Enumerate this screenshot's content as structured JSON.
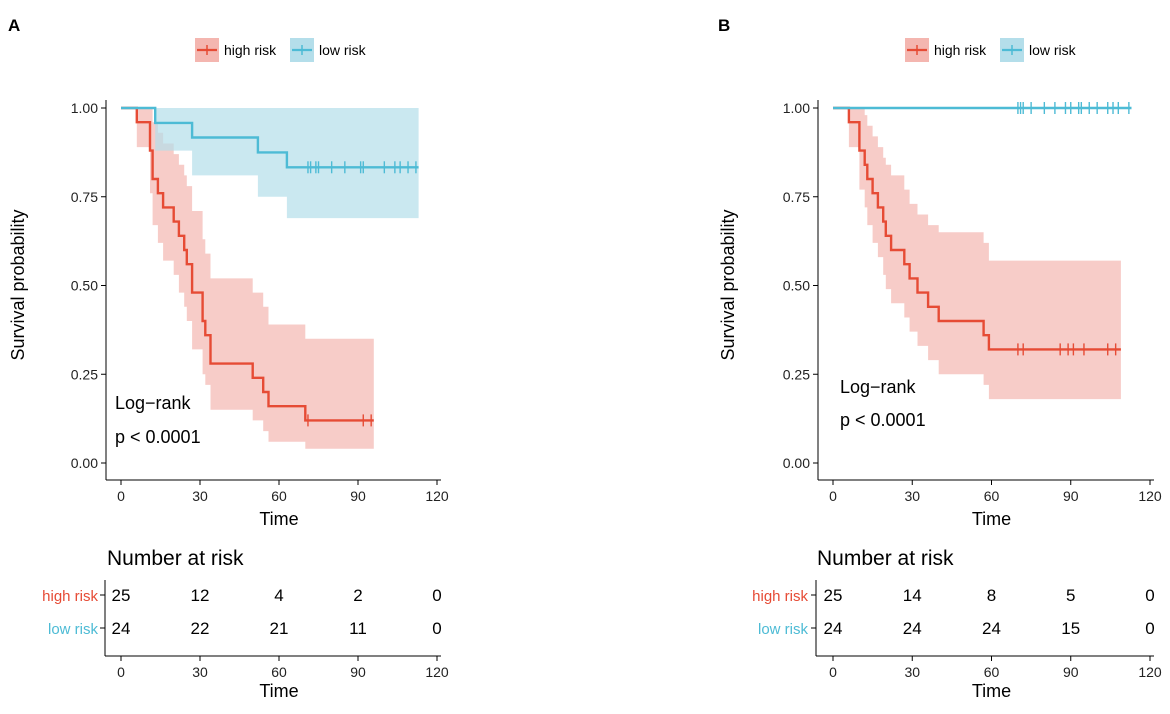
{
  "colors": {
    "high": "#E64B35",
    "low": "#4DBBD5",
    "high_fill": "#F4B6B0",
    "low_fill": "#B4DEEA",
    "axis": "#000000"
  },
  "legend": {
    "high_label": "high risk",
    "low_label": "low risk"
  },
  "chart_data": [
    {
      "type": "kaplan-meier",
      "panel_label": "A",
      "xlabel": "Time",
      "ylabel": "Survival probability",
      "xlim": [
        0,
        120
      ],
      "ylim": [
        0,
        1
      ],
      "xticks": [
        "0",
        "30",
        "60",
        "90",
        "120"
      ],
      "yticks": [
        "0.00",
        "0.25",
        "0.50",
        "0.75",
        "1.00"
      ],
      "annotation": [
        "Log−rank",
        "p < 0.0001"
      ],
      "series": [
        {
          "name": "high risk",
          "steps": [
            [
              0,
              1
            ],
            [
              6,
              0.96
            ],
            [
              11,
              0.88
            ],
            [
              12,
              0.8
            ],
            [
              14,
              0.76
            ],
            [
              16,
              0.72
            ],
            [
              20,
              0.68
            ],
            [
              22,
              0.64
            ],
            [
              24,
              0.6
            ],
            [
              25,
              0.56
            ],
            [
              27,
              0.48
            ],
            [
              31,
              0.4
            ],
            [
              32,
              0.36
            ],
            [
              34,
              0.28
            ],
            [
              50,
              0.24
            ],
            [
              54,
              0.2
            ],
            [
              56,
              0.16
            ],
            [
              70,
              0.12
            ],
            [
              96,
              0.12
            ]
          ],
          "lower": [
            [
              0,
              1
            ],
            [
              6,
              0.89
            ],
            [
              11,
              0.76
            ],
            [
              12,
              0.67
            ],
            [
              14,
              0.62
            ],
            [
              16,
              0.57
            ],
            [
              20,
              0.53
            ],
            [
              22,
              0.48
            ],
            [
              24,
              0.44
            ],
            [
              25,
              0.4
            ],
            [
              27,
              0.32
            ],
            [
              31,
              0.25
            ],
            [
              32,
              0.22
            ],
            [
              34,
              0.15
            ],
            [
              50,
              0.12
            ],
            [
              54,
              0.09
            ],
            [
              56,
              0.06
            ],
            [
              70,
              0.04
            ],
            [
              96,
              0.04
            ]
          ],
          "upper": [
            [
              0,
              1
            ],
            [
              6,
              1.0
            ],
            [
              11,
              1.0
            ],
            [
              12,
              0.96
            ],
            [
              14,
              0.93
            ],
            [
              16,
              0.9
            ],
            [
              20,
              0.87
            ],
            [
              22,
              0.84
            ],
            [
              24,
              0.81
            ],
            [
              25,
              0.78
            ],
            [
              27,
              0.71
            ],
            [
              31,
              0.63
            ],
            [
              32,
              0.59
            ],
            [
              34,
              0.52
            ],
            [
              50,
              0.48
            ],
            [
              54,
              0.44
            ],
            [
              56,
              0.39
            ],
            [
              70,
              0.35
            ],
            [
              96,
              0.35
            ]
          ],
          "censor": [
            71,
            92,
            95
          ]
        },
        {
          "name": "low risk",
          "steps": [
            [
              0,
              1
            ],
            [
              13,
              0.958
            ],
            [
              27,
              0.917
            ],
            [
              52,
              0.875
            ],
            [
              63,
              0.833
            ],
            [
              113,
              0.833
            ]
          ],
          "lower": [
            [
              0,
              1
            ],
            [
              13,
              0.88
            ],
            [
              27,
              0.81
            ],
            [
              52,
              0.75
            ],
            [
              63,
              0.69
            ],
            [
              113,
              0.69
            ]
          ],
          "upper": [
            [
              0,
              1
            ],
            [
              113,
              1.0
            ]
          ],
          "censor": [
            71,
            72,
            74,
            75,
            80,
            85,
            91,
            92,
            100,
            104,
            106,
            109,
            112
          ]
        }
      ],
      "risk_table": {
        "title": "Number at risk",
        "xlabel": "Time",
        "times": [
          "0",
          "30",
          "60",
          "90",
          "120"
        ],
        "rows": [
          {
            "label": "high risk",
            "counts": [
              "25",
              "12",
              "4",
              "2",
              "0"
            ]
          },
          {
            "label": "low risk",
            "counts": [
              "24",
              "22",
              "21",
              "11",
              "0"
            ]
          }
        ]
      }
    },
    {
      "type": "kaplan-meier",
      "panel_label": "B",
      "xlabel": "Time",
      "ylabel": "Survival probability",
      "xlim": [
        0,
        120
      ],
      "ylim": [
        0,
        1
      ],
      "xticks": [
        "0",
        "30",
        "60",
        "90",
        "120"
      ],
      "yticks": [
        "0.00",
        "0.25",
        "0.50",
        "0.75",
        "1.00"
      ],
      "annotation": [
        "Log−rank",
        "p < 0.0001"
      ],
      "series": [
        {
          "name": "high risk",
          "steps": [
            [
              0,
              1
            ],
            [
              6,
              0.96
            ],
            [
              10,
              0.88
            ],
            [
              12,
              0.84
            ],
            [
              13,
              0.8
            ],
            [
              15,
              0.76
            ],
            [
              17,
              0.72
            ],
            [
              19,
              0.68
            ],
            [
              20,
              0.64
            ],
            [
              22,
              0.6
            ],
            [
              27,
              0.56
            ],
            [
              29,
              0.52
            ],
            [
              32,
              0.48
            ],
            [
              36,
              0.44
            ],
            [
              40,
              0.4
            ],
            [
              57,
              0.36
            ],
            [
              59,
              0.32
            ],
            [
              109,
              0.32
            ]
          ],
          "lower": [
            [
              0,
              1
            ],
            [
              6,
              0.89
            ],
            [
              10,
              0.77
            ],
            [
              12,
              0.72
            ],
            [
              13,
              0.67
            ],
            [
              15,
              0.62
            ],
            [
              17,
              0.58
            ],
            [
              19,
              0.53
            ],
            [
              20,
              0.49
            ],
            [
              22,
              0.45
            ],
            [
              27,
              0.41
            ],
            [
              29,
              0.37
            ],
            [
              32,
              0.33
            ],
            [
              36,
              0.29
            ],
            [
              40,
              0.25
            ],
            [
              57,
              0.22
            ],
            [
              59,
              0.18
            ],
            [
              109,
              0.18
            ]
          ],
          "upper": [
            [
              0,
              1
            ],
            [
              6,
              1.0
            ],
            [
              10,
              1.0
            ],
            [
              12,
              0.98
            ],
            [
              13,
              0.95
            ],
            [
              15,
              0.92
            ],
            [
              17,
              0.89
            ],
            [
              19,
              0.86
            ],
            [
              20,
              0.84
            ],
            [
              22,
              0.81
            ],
            [
              27,
              0.77
            ],
            [
              29,
              0.73
            ],
            [
              32,
              0.7
            ],
            [
              36,
              0.67
            ],
            [
              40,
              0.65
            ],
            [
              57,
              0.62
            ],
            [
              59,
              0.57
            ],
            [
              109,
              0.57
            ]
          ],
          "censor": [
            70,
            72,
            86,
            89,
            91,
            95,
            104,
            107
          ]
        },
        {
          "name": "low risk",
          "steps": [
            [
              0,
              1
            ],
            [
              113,
              1.0
            ]
          ],
          "lower": [
            [
              0,
              1
            ],
            [
              113,
              1.0
            ]
          ],
          "upper": [
            [
              0,
              1
            ],
            [
              113,
              1.0
            ]
          ],
          "censor": [
            70,
            71,
            72,
            75,
            80,
            84,
            88,
            90,
            93,
            94,
            97,
            100,
            104,
            106,
            108,
            112
          ]
        }
      ],
      "risk_table": {
        "title": "Number at risk",
        "xlabel": "Time",
        "times": [
          "0",
          "30",
          "60",
          "90",
          "120"
        ],
        "rows": [
          {
            "label": "high risk",
            "counts": [
              "25",
              "14",
              "8",
              "5",
              "0"
            ]
          },
          {
            "label": "low risk",
            "counts": [
              "24",
              "24",
              "24",
              "15",
              "0"
            ]
          }
        ]
      }
    }
  ]
}
